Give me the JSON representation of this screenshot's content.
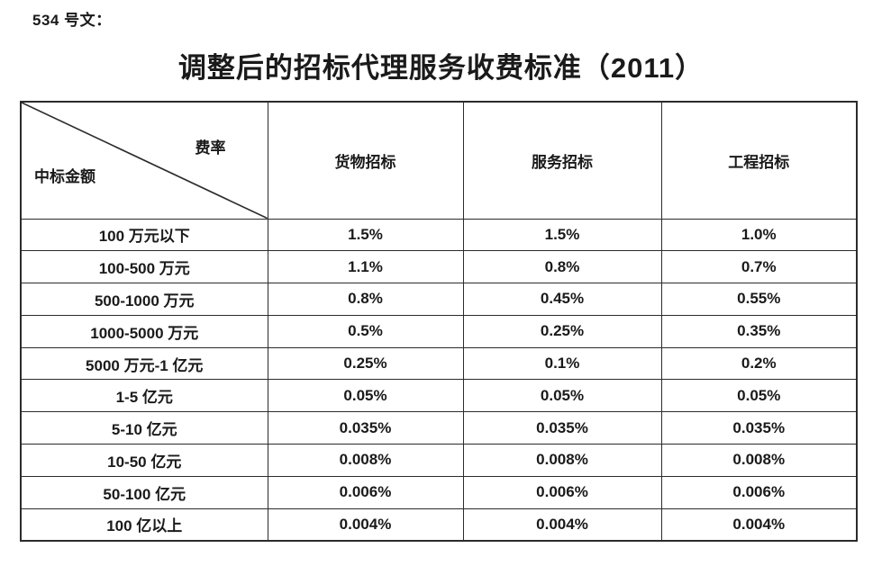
{
  "document": {
    "doc_label": "534 号文：",
    "title": "调整后的招标代理服务收费标准（2011）"
  },
  "table": {
    "corner": {
      "top_right_label": "费率",
      "bottom_left_label": "中标金额"
    },
    "columns": [
      "货物招标",
      "服务招标",
      "工程招标"
    ],
    "rows": [
      {
        "amount": "100 万元以下",
        "values": [
          "1.5%",
          "1.5%",
          "1.0%"
        ]
      },
      {
        "amount": "100-500 万元",
        "values": [
          "1.1%",
          "0.8%",
          "0.7%"
        ]
      },
      {
        "amount": "500-1000 万元",
        "values": [
          "0.8%",
          "0.45%",
          "0.55%"
        ]
      },
      {
        "amount": "1000-5000 万元",
        "values": [
          "0.5%",
          "0.25%",
          "0.35%"
        ]
      },
      {
        "amount": "5000 万元-1 亿元",
        "values": [
          "0.25%",
          "0.1%",
          "0.2%"
        ]
      },
      {
        "amount": "1-5 亿元",
        "values": [
          "0.05%",
          "0.05%",
          "0.05%"
        ]
      },
      {
        "amount": "5-10 亿元",
        "values": [
          "0.035%",
          "0.035%",
          "0.035%"
        ]
      },
      {
        "amount": "10-50 亿元",
        "values": [
          "0.008%",
          "0.008%",
          "0.008%"
        ]
      },
      {
        "amount": "50-100 亿元",
        "values": [
          "0.006%",
          "0.006%",
          "0.006%"
        ]
      },
      {
        "amount": "100 亿以上",
        "values": [
          "0.004%",
          "0.004%",
          "0.004%"
        ]
      }
    ]
  },
  "colors": {
    "text": "#1a1a1a",
    "border": "#2b2b2b",
    "background": "#ffffff"
  }
}
